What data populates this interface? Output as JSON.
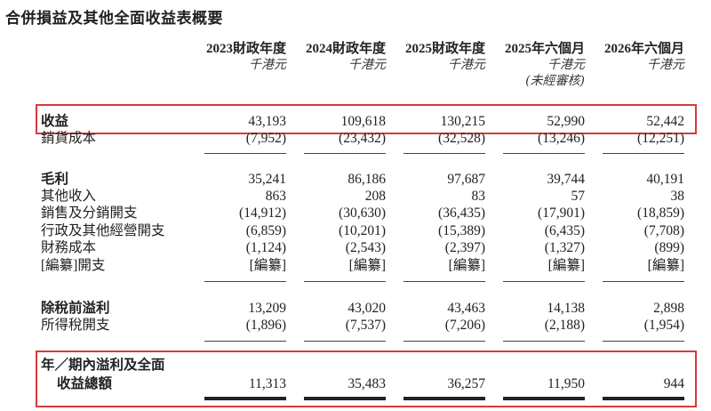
{
  "title": "合併損益及其他全面收益表概要",
  "columns": [
    {
      "period": "2023財政年度",
      "unit": "千港元",
      "note": ""
    },
    {
      "period": "2024財政年度",
      "unit": "千港元",
      "note": ""
    },
    {
      "period": "2025財政年度",
      "unit": "千港元",
      "note": ""
    },
    {
      "period": "2025年六個月",
      "unit": "千港元",
      "note": "(未經審核)"
    },
    {
      "period": "2026年六個月",
      "unit": "千港元",
      "note": ""
    }
  ],
  "rows": [
    {
      "label": "收益",
      "values": [
        "43,193",
        "109,618",
        "130,215",
        "52,990",
        "52,442"
      ],
      "bold": true,
      "highlighted": true
    },
    {
      "label": "銷貨成本",
      "values": [
        "(7,952)",
        "(23,432)",
        "(32,528)",
        "(13,246)",
        "(12,251)"
      ]
    },
    {
      "label": "毛利",
      "values": [
        "35,241",
        "86,186",
        "97,687",
        "39,744",
        "40,191"
      ],
      "bold": true
    },
    {
      "label": "其他收入",
      "values": [
        "863",
        "208",
        "83",
        "57",
        "38"
      ]
    },
    {
      "label": "銷售及分銷開支",
      "values": [
        "(14,912)",
        "(30,630)",
        "(36,435)",
        "(17,901)",
        "(18,859)"
      ]
    },
    {
      "label": "行政及其他經營開支",
      "values": [
        "(6,859)",
        "(10,201)",
        "(15,389)",
        "(6,435)",
        "(7,708)"
      ]
    },
    {
      "label": "財務成本",
      "values": [
        "(1,124)",
        "(2,543)",
        "(2,397)",
        "(1,327)",
        "(899)"
      ]
    },
    {
      "label": "[編纂]開支",
      "values": [
        "[編纂]",
        "[編纂]",
        "[編纂]",
        "[編纂]",
        "[編纂]"
      ]
    },
    {
      "label": "除稅前溢利",
      "values": [
        "13,209",
        "43,020",
        "43,463",
        "14,138",
        "2,898"
      ],
      "bold": true
    },
    {
      "label": "所得稅開支",
      "values": [
        "(1,896)",
        "(7,537)",
        "(7,206)",
        "(2,188)",
        "(1,954)"
      ]
    }
  ],
  "total": {
    "label_line1": "年／期內溢利及全面",
    "label_line2": "收益總額",
    "values": [
      "11,313",
      "35,483",
      "36,257",
      "11,950",
      "944"
    ],
    "highlighted": true
  },
  "colors": {
    "highlight_border": "#d83a3a"
  }
}
